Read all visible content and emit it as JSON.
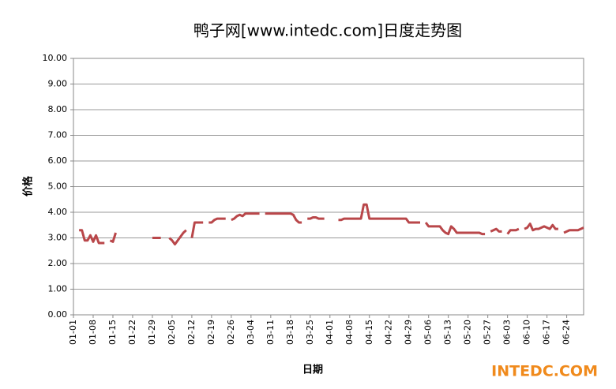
{
  "chart_data": {
    "type": "line",
    "title": "鸭子网[www.intedc.com]日度走势图",
    "x_label": "日期",
    "y_label": "价格",
    "logo": "INTEDC.COM",
    "categories": [
      "01-01",
      null,
      null,
      null,
      null,
      null,
      null,
      "01-08",
      null,
      null,
      null,
      null,
      null,
      null,
      "01-15",
      null,
      null,
      null,
      null,
      null,
      null,
      "01-22",
      null,
      null,
      null,
      null,
      null,
      null,
      "01-29",
      null,
      null,
      null,
      null,
      null,
      null,
      "02-05",
      null,
      null,
      null,
      null,
      null,
      null,
      "02-12",
      null,
      null,
      null,
      null,
      null,
      null,
      "02-19",
      null,
      null,
      null,
      null,
      null,
      null,
      "02-26",
      null,
      null,
      null,
      null,
      null,
      null,
      "03-04",
      null,
      null,
      null,
      null,
      null,
      null,
      "03-11",
      null,
      null,
      null,
      null,
      null,
      null,
      "03-18",
      null,
      null,
      null,
      null,
      null,
      null,
      "03-25",
      null,
      null,
      null,
      null,
      null,
      null,
      "04-01",
      null,
      null,
      null,
      null,
      null,
      null,
      "04-08",
      null,
      null,
      null,
      null,
      null,
      null,
      "04-15",
      null,
      null,
      null,
      null,
      null,
      null,
      "04-22",
      null,
      null,
      null,
      null,
      null,
      null,
      "04-29",
      null,
      null,
      null,
      null,
      null,
      null,
      "05-06",
      null,
      null,
      null,
      null,
      null,
      null,
      "05-13",
      null,
      null,
      null,
      null,
      null,
      null,
      "05-20",
      null,
      null,
      null,
      null,
      null,
      null,
      "05-27",
      null,
      null,
      null,
      null,
      null,
      null,
      "06-03",
      null,
      null,
      null,
      null,
      null,
      null,
      "06-10",
      null,
      null,
      null,
      null,
      null,
      null,
      "06-17",
      null,
      null,
      null,
      null,
      null,
      null,
      "06-24",
      null,
      null,
      null,
      null,
      null,
      null
    ],
    "values": [
      null,
      null,
      3.3,
      3.3,
      2.9,
      2.9,
      3.1,
      2.85,
      3.1,
      2.8,
      2.8,
      2.8,
      null,
      2.9,
      2.85,
      3.2,
      null,
      null,
      null,
      null,
      null,
      null,
      null,
      null,
      null,
      null,
      null,
      null,
      3.0,
      3.0,
      3.0,
      3.0,
      null,
      null,
      3.0,
      2.9,
      2.75,
      2.9,
      3.05,
      3.2,
      3.3,
      null,
      3.0,
      3.6,
      3.6,
      3.6,
      3.6,
      null,
      3.6,
      3.6,
      3.7,
      3.75,
      3.75,
      3.75,
      3.75,
      null,
      3.7,
      3.75,
      3.85,
      3.9,
      3.85,
      3.95,
      3.95,
      3.95,
      3.95,
      3.95,
      3.95,
      null,
      3.95,
      3.95,
      3.95,
      3.95,
      3.95,
      3.95,
      3.95,
      3.95,
      3.95,
      3.95,
      3.9,
      3.7,
      3.6,
      3.6,
      null,
      3.75,
      3.75,
      3.8,
      3.8,
      3.75,
      3.75,
      3.75,
      null,
      null,
      null,
      null,
      3.7,
      3.7,
      3.75,
      3.75,
      3.75,
      3.75,
      3.75,
      3.75,
      3.75,
      4.3,
      4.3,
      3.75,
      3.75,
      3.75,
      3.75,
      3.75,
      3.75,
      3.75,
      3.75,
      3.75,
      3.75,
      3.75,
      3.75,
      3.75,
      3.75,
      3.6,
      3.6,
      3.6,
      3.6,
      3.6,
      null,
      3.6,
      3.45,
      3.45,
      3.45,
      3.45,
      3.45,
      3.3,
      3.2,
      3.15,
      3.45,
      3.35,
      3.2,
      3.2,
      3.2,
      3.2,
      3.2,
      3.2,
      3.2,
      3.2,
      3.2,
      3.15,
      3.15,
      null,
      3.25,
      3.3,
      3.35,
      3.25,
      3.25,
      null,
      3.15,
      3.3,
      3.3,
      3.3,
      3.35,
      null,
      3.35,
      3.4,
      3.55,
      3.3,
      3.35,
      3.35,
      3.4,
      3.45,
      3.4,
      3.35,
      3.5,
      3.35,
      3.35,
      null,
      3.2,
      3.25,
      3.3,
      3.3,
      3.3,
      3.3,
      3.35,
      3.4
    ],
    "color": "#b9474a",
    "ylim": [
      0,
      10
    ],
    "yticks": [
      {
        "value": 0,
        "label": "0.00"
      },
      {
        "value": 1,
        "label": "1.00"
      },
      {
        "value": 2,
        "label": "2.00"
      },
      {
        "value": 3,
        "label": "3.00"
      },
      {
        "value": 4,
        "label": "4.00"
      },
      {
        "value": 5,
        "label": "5.00"
      },
      {
        "value": 6,
        "label": "6.00"
      },
      {
        "value": 7,
        "label": "7.00"
      },
      {
        "value": 8,
        "label": "8.00"
      },
      {
        "value": 9,
        "label": "9.00"
      },
      {
        "value": 10,
        "label": "10.00"
      }
    ],
    "grid": true
  }
}
